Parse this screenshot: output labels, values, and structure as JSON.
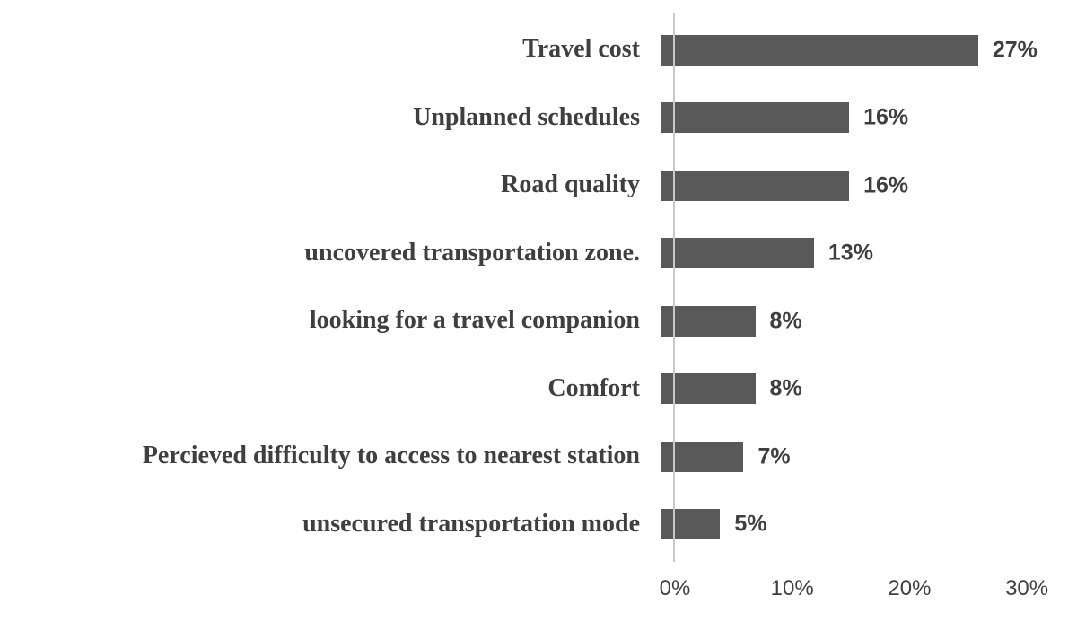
{
  "chart_data": {
    "type": "bar",
    "orientation": "horizontal",
    "categories": [
      "Travel cost",
      "Unplanned schedules",
      "Road quality",
      "uncovered transportation zone.",
      "looking for a travel companion",
      "Comfort",
      "Percieved difficulty to access to nearest station",
      "unsecured transportation mode"
    ],
    "values": [
      27,
      16,
      16,
      13,
      8,
      8,
      7,
      5
    ],
    "value_labels": [
      "27%",
      "16%",
      "16%",
      "13%",
      "8%",
      "8%",
      "7%",
      "5%"
    ],
    "x_tick_labels": [
      "0%",
      "10%",
      "20%",
      "30%"
    ],
    "x_tick_values": [
      0,
      10,
      20,
      30
    ],
    "xlim": [
      0,
      31.5
    ],
    "title": "",
    "xlabel": "",
    "ylabel": "",
    "legend": "none",
    "grid": "off",
    "bar_color": "#595959",
    "axis_line_color": "#c9c9c9",
    "text_color": "#3f3f3f"
  }
}
